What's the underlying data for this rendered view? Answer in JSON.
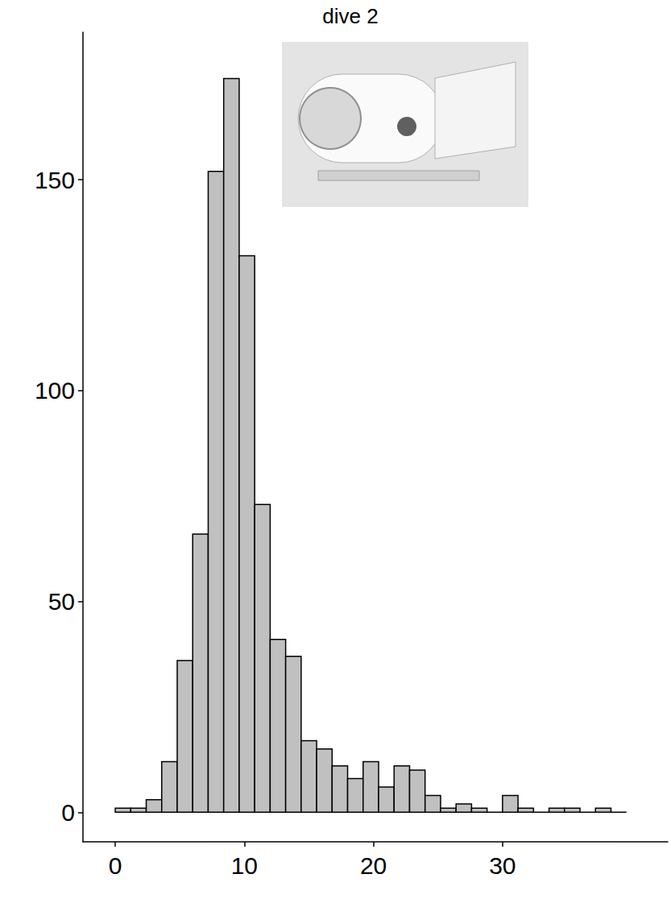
{
  "chart_data": {
    "type": "histogram",
    "title": "dive 2",
    "bins": [
      0,
      1.2,
      2.4,
      3.6,
      4.8,
      6,
      7.2,
      8.4,
      9.6,
      10.8,
      12,
      13.2,
      14.4,
      15.6,
      16.8,
      18,
      19.2,
      20.4,
      21.6,
      22.8,
      24,
      25.2,
      26.4,
      27.6,
      28.8,
      30,
      31.2,
      32.4,
      33.6,
      34.8,
      36,
      37.2,
      38.4,
      39.6
    ],
    "values": [
      1,
      1,
      3,
      12,
      36,
      66,
      152,
      174,
      132,
      73,
      41,
      37,
      17,
      15,
      11,
      8,
      12,
      6,
      11,
      10,
      4,
      1,
      2,
      1,
      0,
      4,
      1,
      0,
      1,
      1,
      0,
      1,
      0
    ],
    "color": "#c0c0c0",
    "xlim": [
      -2.5,
      42.8
    ],
    "xticks": [
      0,
      10,
      20,
      30
    ],
    "ylim": [
      -7,
      185
    ],
    "yticks": [
      0,
      50,
      100,
      150
    ],
    "grid": false
  }
}
